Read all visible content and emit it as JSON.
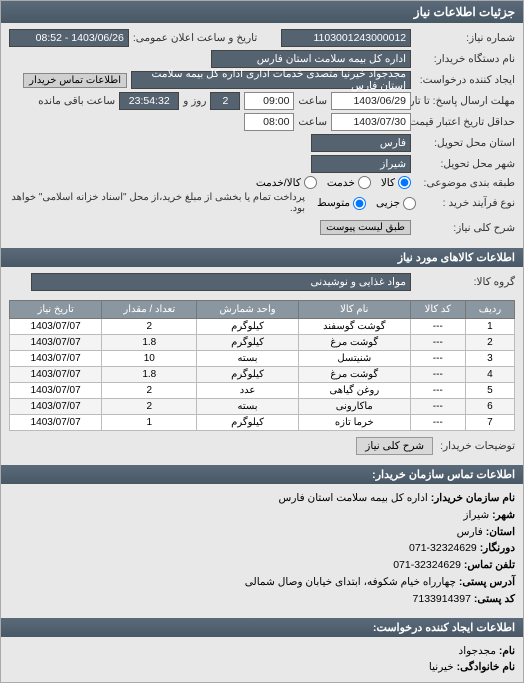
{
  "header": {
    "title": "جزئیات اطلاعات نیاز"
  },
  "form": {
    "request_no_label": "شماره نیاز:",
    "request_no": "1103001243000012",
    "announce_label": "تاریخ و ساعت اعلان عمومی:",
    "announce_value": "1403/06/26 - 08:52",
    "buyer_org_label": "نام دستگاه خریدار:",
    "buyer_org": "اداره کل بیمه سلامت استان فارس",
    "creator_label": "ایجاد کننده درخواست:",
    "creator": "مجدجواد خیرنیا متصدی خدمات اداری اداره کل بیمه سلامت استان فارس",
    "contact_btn": "اطلاعات تماس خریدار",
    "deadline_label": "مهلت ارسال پاسخ: تا تاریخ:",
    "deadline_date": "1403/06/29",
    "time_label": "ساعت",
    "deadline_time": "09:00",
    "days_remaining_prefix": "",
    "days_remaining": "2",
    "days_remaining_mid": "روز و",
    "time_remaining": "23:54:32",
    "time_remaining_suffix": "ساعت باقی مانده",
    "validity_label": "حداقل تاریخ اعتبار قیمت: تا تاریخ:",
    "validity_date": "1403/07/30",
    "validity_time": "08:00",
    "delivery_province_label": "استان محل تحویل:",
    "delivery_province": "فارس",
    "delivery_city_label": "شهر محل تحویل:",
    "delivery_city": "شیراز",
    "category_label": "طبقه بندی موضوعی:",
    "cat_goods": "کالا",
    "cat_service": "خدمت",
    "cat_goods_service": "کالا/خدمت",
    "process_label": "نوع فرآیند خرید :",
    "proc_small": "جزیی",
    "proc_medium": "متوسط",
    "proc_note": "پرداخت تمام یا بخشی از مبلغ خرید،از محل \"اسناد خزانه اسلامی\" خواهد بود.",
    "general_desc_label": "شرح کلی نیاز:",
    "general_desc_btn": "طبق لیست پیوست"
  },
  "items_section": {
    "title": "اطلاعات کالاهای مورد نیاز",
    "group_label": "گروه کالا:",
    "group_value": "مواد غذایی و نوشیدنی"
  },
  "table": {
    "headers": [
      "ردیف",
      "کد کالا",
      "نام کالا",
      "واحد شمارش",
      "تعداد / مقدار",
      "تاریخ نیاز"
    ],
    "rows": [
      [
        "1",
        "---",
        "گوشت گوسفند",
        "کیلوگرم",
        "2",
        "1403/07/07"
      ],
      [
        "2",
        "---",
        "گوشت مرغ",
        "کیلوگرم",
        "1.8",
        "1403/07/07"
      ],
      [
        "3",
        "---",
        "شنیتسل",
        "بسته",
        "10",
        "1403/07/07"
      ],
      [
        "4",
        "---",
        "گوشت مرغ",
        "کیلوگرم",
        "1.8",
        "1403/07/07"
      ],
      [
        "5",
        "---",
        "روغن گیاهی",
        "عدد",
        "2",
        "1403/07/07"
      ],
      [
        "6",
        "---",
        "ماکارونی",
        "بسته",
        "2",
        "1403/07/07"
      ],
      [
        "7",
        "---",
        "خرما تازه",
        "کیلوگرم",
        "1",
        "1403/07/07"
      ]
    ]
  },
  "desc_tab": {
    "label": "شرح کلی نیاز",
    "sub": "توضیحات خریدار:"
  },
  "contact": {
    "header": "اطلاعات تماس سازمان خریدار:",
    "org_label": "نام سازمان خریدار:",
    "org": "اداره کل بیمه سلامت استان فارس",
    "city_label": "شهر:",
    "city": "شیراز",
    "province_label": "استان:",
    "province": "فارس",
    "fax_label": "دورنگار:",
    "fax": "32324629-071",
    "phone_label": "تلفن تماس:",
    "phone": "32324629-071",
    "address_label": "آدرس پستی:",
    "address": "چهارراه خیام شکوفه، ابتدای خیابان وصال شمالی",
    "postal_label": "کد پستی:",
    "postal": "7133914397",
    "creator_header": "اطلاعات ایجاد کننده درخواست:",
    "name_label": "نام:",
    "name": "مجدجواد",
    "family_label": "نام خانوادگی:",
    "family": "خیرنیا"
  }
}
